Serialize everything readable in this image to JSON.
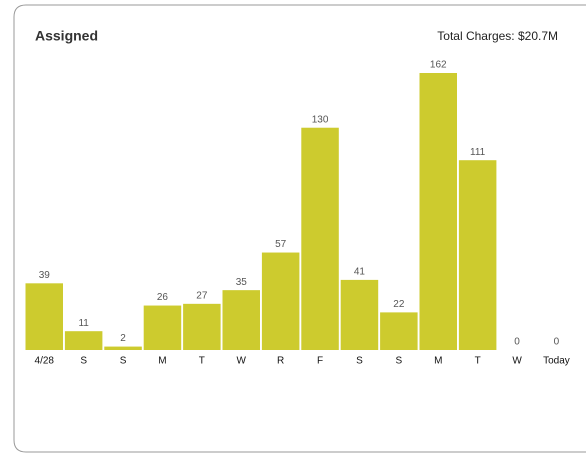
{
  "chart_data": {
    "type": "bar",
    "title": "Assigned",
    "subtitle": "Total Charges: $20.7M",
    "categories": [
      "4/28",
      "S",
      "S",
      "M",
      "T",
      "W",
      "R",
      "F",
      "S",
      "S",
      "M",
      "T",
      "W",
      "Today"
    ],
    "values": [
      39,
      11,
      2,
      26,
      27,
      35,
      57,
      130,
      41,
      22,
      162,
      111,
      0,
      0
    ],
    "color": "#cdcb2e"
  }
}
